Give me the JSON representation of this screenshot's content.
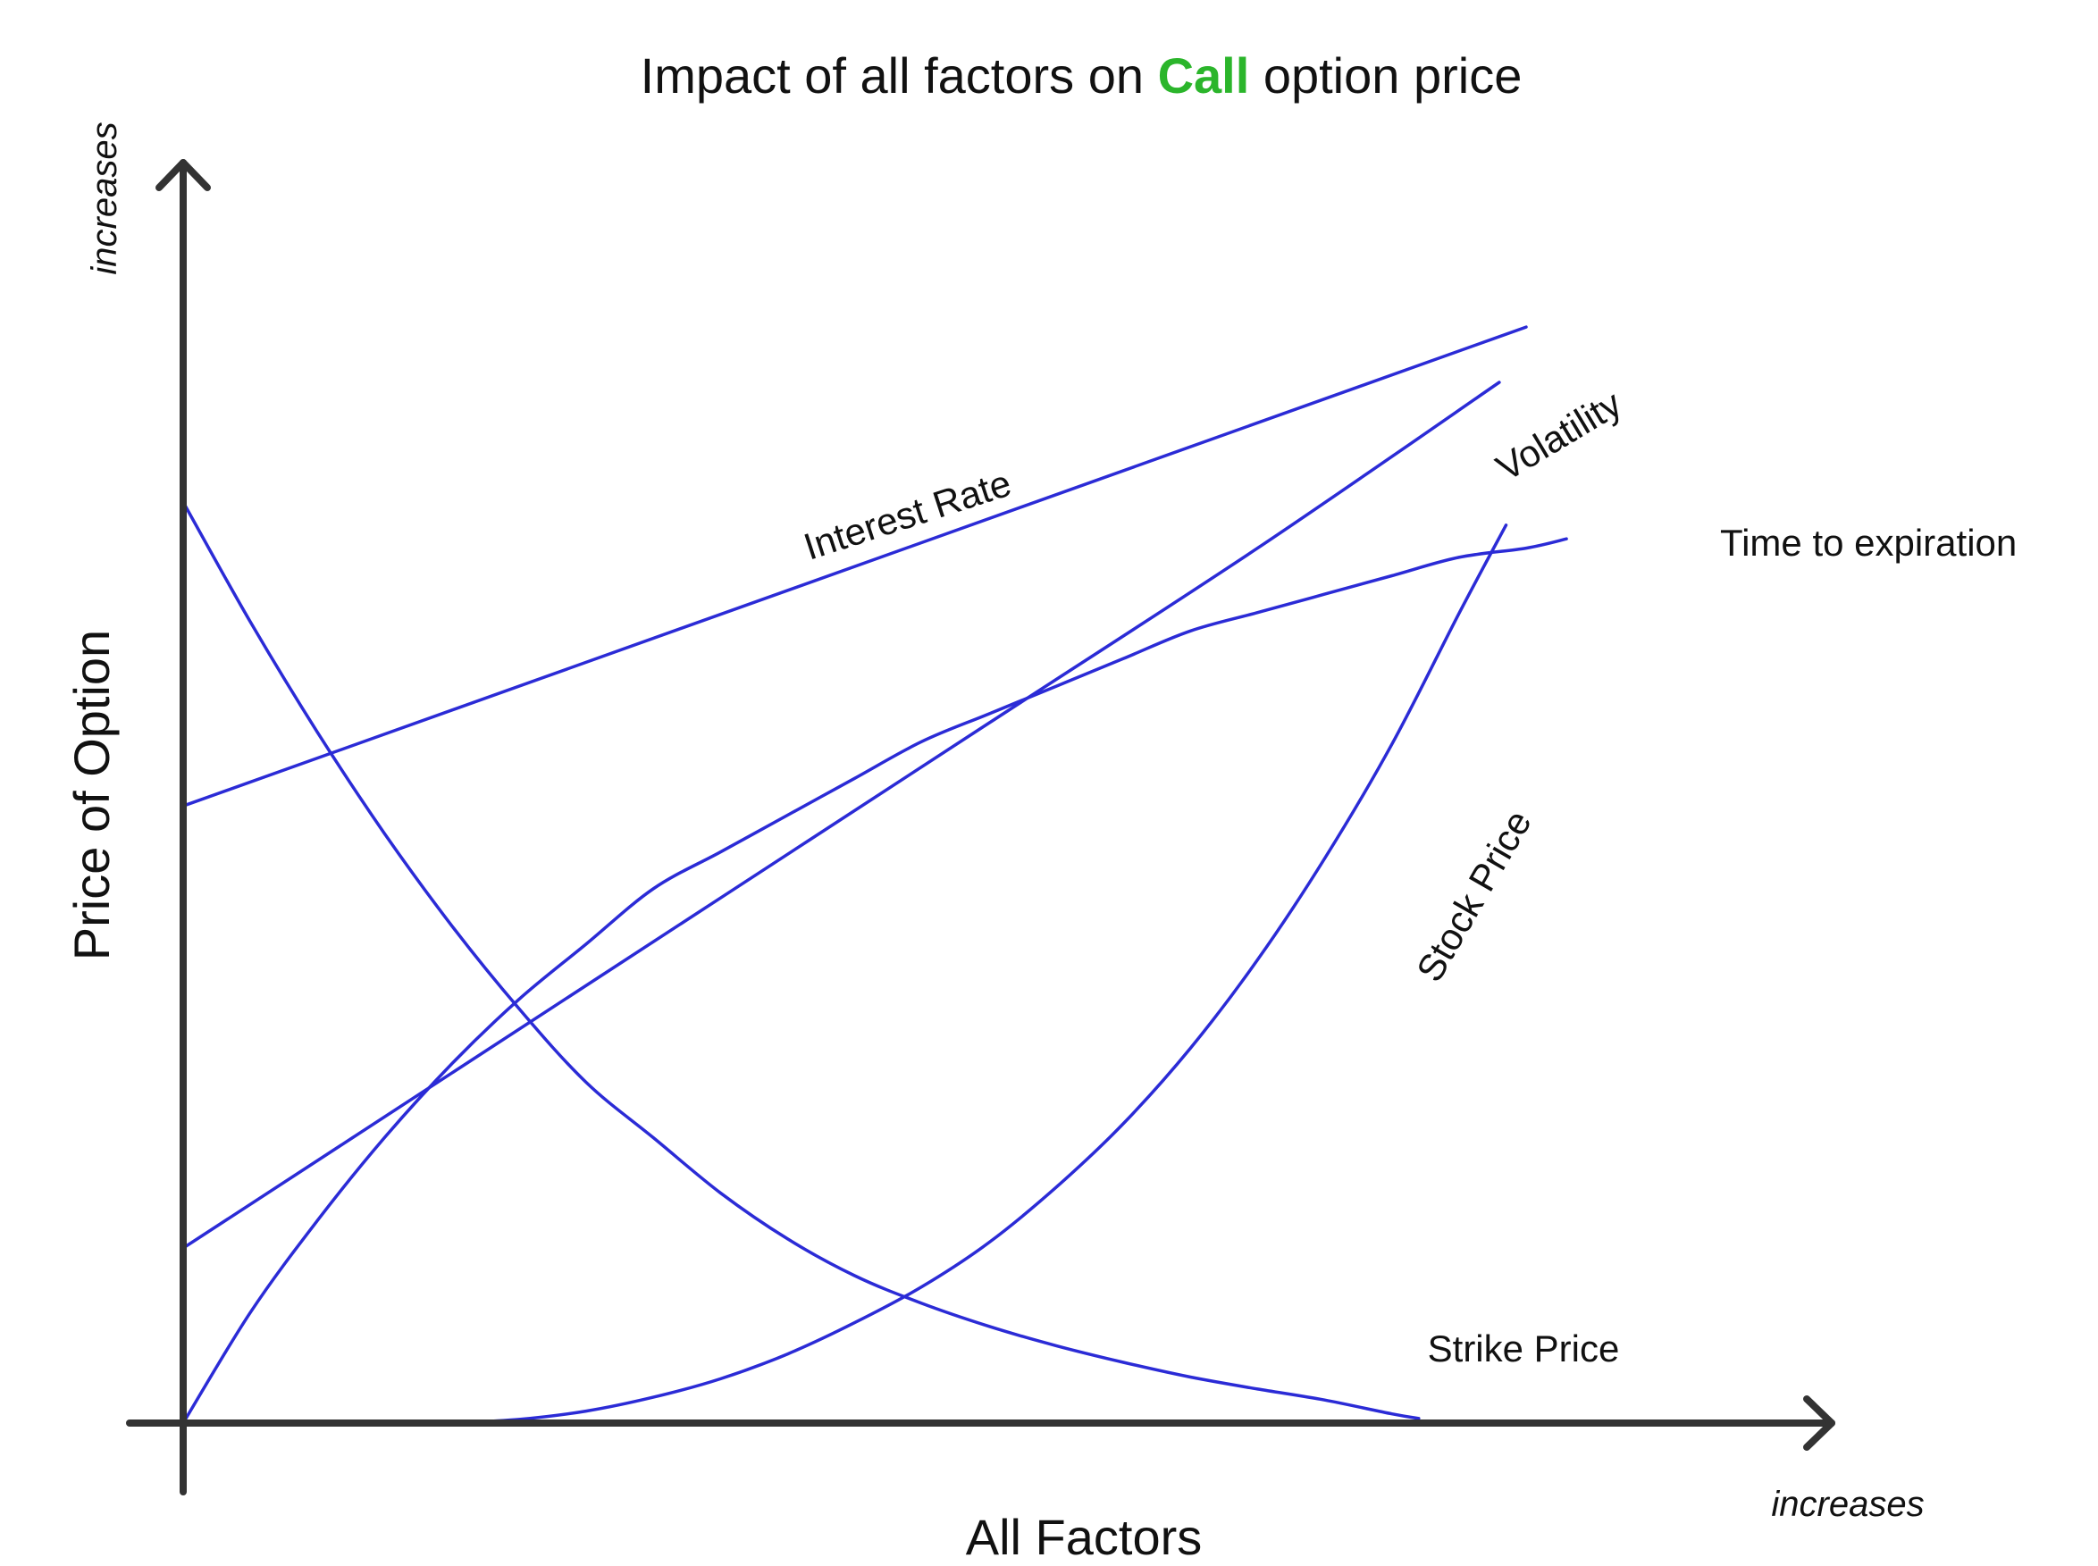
{
  "chart_data": {
    "type": "line",
    "title_parts": {
      "before": "Impact of all factors on ",
      "highlight": "Call",
      "after": " option price"
    },
    "title_highlight_color": "#2bb52b",
    "xlabel": "All Factors",
    "ylabel": "Price of Option",
    "x_direction_label": "increases",
    "y_direction_label": "increases",
    "line_color": "#2b2bd6",
    "axis_color": "#333333",
    "xlim": [
      0,
      100
    ],
    "ylim": [
      0,
      100
    ],
    "grid": false,
    "series": [
      {
        "name": "Interest Rate",
        "x": [
          0,
          100
        ],
        "y": [
          67,
          119
        ]
      },
      {
        "name": "Volatility",
        "x": [
          0,
          20,
          40,
          60,
          80,
          98
        ],
        "y": [
          19,
          38,
          57,
          76,
          95,
          113
        ]
      },
      {
        "name": "Time to expiration",
        "x": [
          0,
          5,
          10,
          15,
          20,
          25,
          30,
          35,
          40,
          45,
          50,
          55,
          60,
          65,
          70,
          75,
          80,
          85,
          90,
          95,
          100,
          103
        ],
        "y": [
          0,
          12,
          22,
          31,
          39,
          46,
          52,
          58,
          62,
          66,
          70,
          74,
          77,
          80,
          83,
          86,
          88,
          90,
          92,
          94,
          95,
          96
        ]
      },
      {
        "name": "Stock Price",
        "x": [
          20,
          25,
          30,
          35,
          40,
          45,
          50,
          55,
          60,
          65,
          70,
          75,
          80,
          85,
          90,
          95,
          98.5
        ],
        "y": [
          0,
          0.4,
          1.3,
          2.8,
          4.8,
          7.5,
          10.9,
          14.8,
          19.6,
          25.6,
          32.5,
          40.7,
          50.3,
          61.3,
          73.7,
          87.9,
          97.5
        ]
      },
      {
        "name": "Strike Price",
        "x": [
          0,
          5,
          10,
          15,
          20,
          25,
          30,
          35,
          40,
          45,
          50,
          55,
          60,
          65,
          70,
          75,
          80,
          85,
          90,
          92
        ],
        "y": [
          100,
          87,
          75,
          64,
          54,
          45,
          37,
          31,
          25,
          20,
          16,
          13,
          10.5,
          8.4,
          6.6,
          5.0,
          3.7,
          2.5,
          1.0,
          0.5
        ]
      }
    ]
  }
}
